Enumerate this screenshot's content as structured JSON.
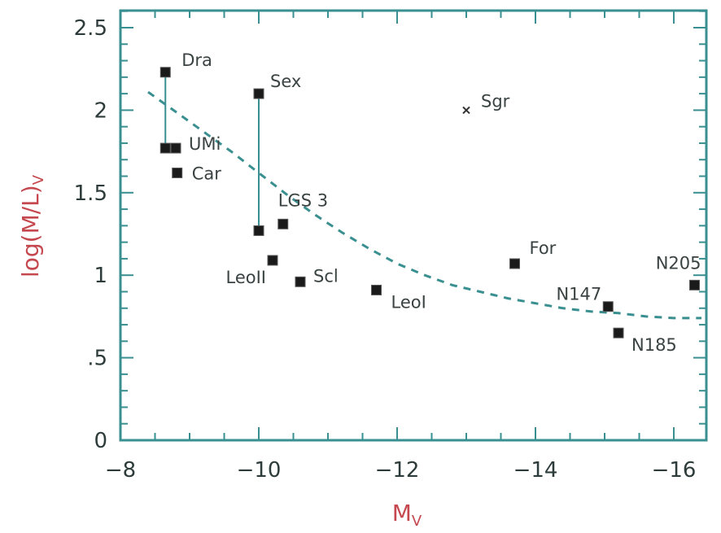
{
  "chart_data": {
    "type": "scatter",
    "xlabel": "M",
    "xlabel_sub": "V",
    "ylabel": "log(M/L)",
    "ylabel_sub": "V",
    "xlim": [
      -8,
      -17
    ],
    "ylim": [
      0,
      2.6
    ],
    "x_ticks": [
      {
        "value": -8,
        "label": "−8"
      },
      {
        "value": -10,
        "label": "−10"
      },
      {
        "value": -12,
        "label": "−12"
      },
      {
        "value": -14,
        "label": "−14"
      },
      {
        "value": -16,
        "label": "−16"
      }
    ],
    "y_ticks": [
      {
        "value": 0,
        "label": "0"
      },
      {
        "value": 0.5,
        "label": ".5"
      },
      {
        "value": 1,
        "label": "1"
      },
      {
        "value": 1.5,
        "label": "1.5"
      },
      {
        "value": 2,
        "label": "2"
      },
      {
        "value": 2.5,
        "label": "2.5"
      }
    ],
    "points": [
      {
        "label": "Dra",
        "x": -8.65,
        "y": 2.23,
        "marker": "square"
      },
      {
        "label": "",
        "x": -8.65,
        "y": 1.77,
        "marker": "square"
      },
      {
        "label": "UMi",
        "x": -8.8,
        "y": 1.77,
        "marker": "square"
      },
      {
        "label": "Car",
        "x": -8.82,
        "y": 1.62,
        "marker": "square"
      },
      {
        "label": "Sex",
        "x": -10.0,
        "y": 2.1,
        "marker": "square"
      },
      {
        "label": "",
        "x": -10.0,
        "y": 1.27,
        "marker": "square"
      },
      {
        "label": "LGS 3",
        "x": -10.35,
        "y": 1.31,
        "marker": "square"
      },
      {
        "label": "LeoII",
        "x": -10.2,
        "y": 1.09,
        "marker": "square"
      },
      {
        "label": "Scl",
        "x": -10.6,
        "y": 0.96,
        "marker": "square"
      },
      {
        "label": "LeoI",
        "x": -11.7,
        "y": 0.91,
        "marker": "square"
      },
      {
        "label": "For",
        "x": -13.7,
        "y": 1.07,
        "marker": "square"
      },
      {
        "label": "N147",
        "x": -15.05,
        "y": 0.81,
        "marker": "square"
      },
      {
        "label": "N185",
        "x": -15.2,
        "y": 0.65,
        "marker": "square"
      },
      {
        "label": "N205",
        "x": -16.3,
        "y": 0.94,
        "marker": "square"
      },
      {
        "label": "Sgr",
        "x": -13.0,
        "y": 2.0,
        "marker": "cross"
      }
    ],
    "error_bars": [
      {
        "x": -8.65,
        "y_low": 1.77,
        "y_high": 2.23
      },
      {
        "x": -10.0,
        "y_low": 1.27,
        "y_high": 2.1
      }
    ],
    "fit_curve": [
      [
        -8.4,
        2.11
      ],
      [
        -8.8,
        1.99
      ],
      [
        -9.2,
        1.87
      ],
      [
        -9.6,
        1.75
      ],
      [
        -10.0,
        1.62
      ],
      [
        -10.4,
        1.49
      ],
      [
        -10.8,
        1.37
      ],
      [
        -11.2,
        1.26
      ],
      [
        -11.6,
        1.16
      ],
      [
        -12.0,
        1.07
      ],
      [
        -12.4,
        1.0
      ],
      [
        -12.8,
        0.94
      ],
      [
        -13.2,
        0.9
      ],
      [
        -13.6,
        0.86
      ],
      [
        -14.0,
        0.83
      ],
      [
        -14.4,
        0.8
      ],
      [
        -14.8,
        0.78
      ],
      [
        -15.2,
        0.77
      ],
      [
        -15.6,
        0.75
      ],
      [
        -16.0,
        0.74
      ],
      [
        -16.4,
        0.74
      ]
    ]
  }
}
